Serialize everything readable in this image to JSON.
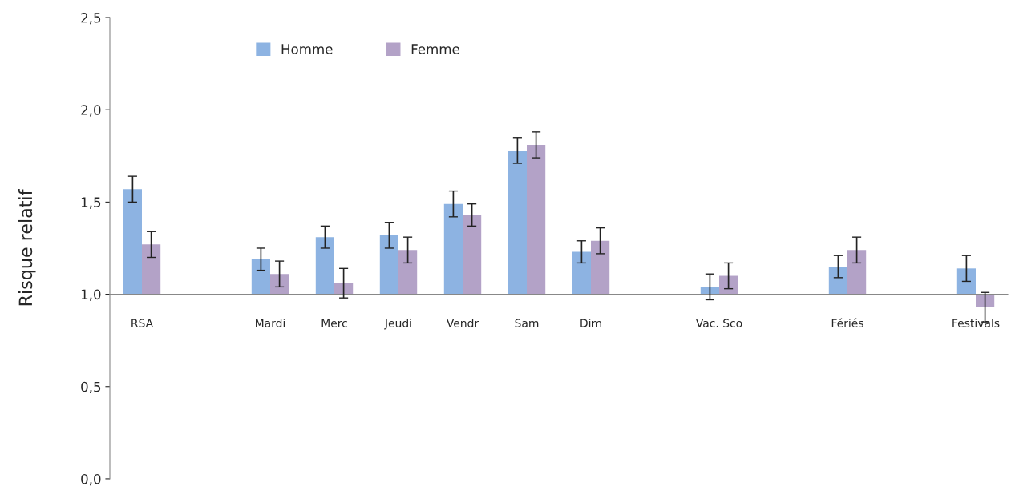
{
  "chart_data": {
    "type": "bar",
    "ylabel": "Risque relatif",
    "categories": [
      "RSA",
      null,
      "Mardi",
      "Merc",
      "Jeudi",
      "Vendr",
      "Sam",
      "Dim",
      null,
      "Vac. Sco",
      null,
      "Fériés",
      null,
      "Festivals"
    ],
    "series": [
      {
        "name": "Homme",
        "color": "#8db3e2",
        "base": [
          1,
          null,
          1,
          1,
          1,
          1,
          1,
          1,
          null,
          1,
          null,
          1,
          null,
          1
        ],
        "values": [
          0.57,
          null,
          0.19,
          0.31,
          0.32,
          0.49,
          0.78,
          0.23,
          null,
          0.04,
          null,
          0.15,
          null,
          0.14
        ],
        "errors": [
          0.07,
          null,
          0.06,
          0.06,
          0.07,
          0.07,
          0.07,
          0.06,
          null,
          0.07,
          null,
          0.06,
          null,
          0.07
        ]
      },
      {
        "name": "Femme",
        "color": "#b3a2c7",
        "base": [
          1,
          null,
          1,
          1,
          1,
          1,
          1,
          1,
          null,
          1,
          null,
          1,
          null,
          1
        ],
        "values": [
          0.27,
          null,
          0.11,
          0.06,
          0.24,
          0.43,
          0.81,
          0.29,
          null,
          0.1,
          null,
          0.24,
          null,
          -0.07
        ],
        "errors": [
          0.07,
          null,
          0.07,
          0.08,
          0.07,
          0.06,
          0.07,
          0.07,
          null,
          0.07,
          null,
          0.07,
          null,
          0.08
        ]
      }
    ],
    "ylim": [
      0,
      2.5
    ],
    "yticks": [
      {
        "value": 0,
        "label": "0,0"
      },
      {
        "value": 0.5,
        "label": "0,5"
      },
      {
        "value": 1,
        "label": "1,0"
      },
      {
        "value": 1.5,
        "label": "1,5"
      },
      {
        "value": 2,
        "label": "2,0"
      },
      {
        "value": 2.5,
        "label": "2,5"
      }
    ],
    "grid": false,
    "legend": "top left"
  }
}
